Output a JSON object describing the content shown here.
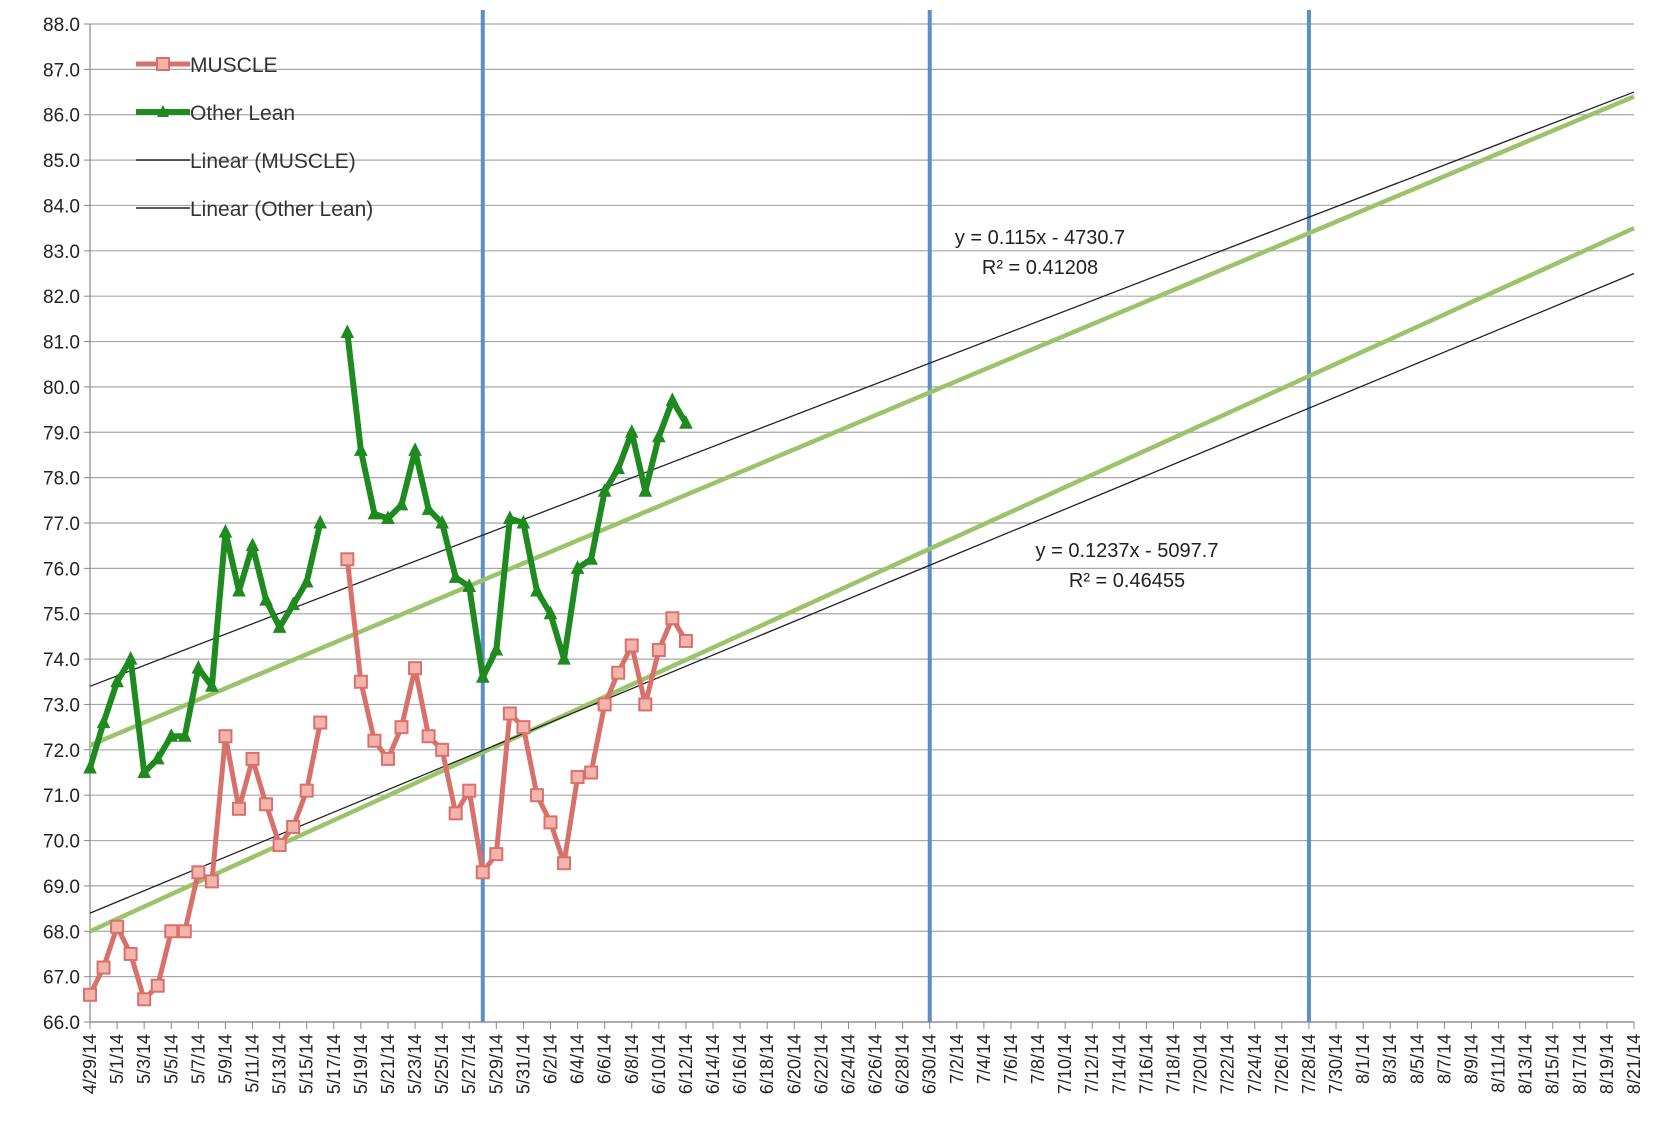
{
  "chart_data": {
    "type": "line",
    "title": "",
    "xlabel": "",
    "ylabel": "",
    "ylim": [
      66.0,
      88.0
    ],
    "y_tick_step": 1.0,
    "x_start": "2014-04-29",
    "x_end": "2014-08-21",
    "x_tick_labels": [
      "4/29/14",
      "5/1/14",
      "5/3/14",
      "5/5/14",
      "5/7/14",
      "5/9/14",
      "5/11/14",
      "5/13/14",
      "5/15/14",
      "5/17/14",
      "5/19/14",
      "5/21/14",
      "5/23/14",
      "5/25/14",
      "5/27/14",
      "5/29/14",
      "5/31/14",
      "6/2/14",
      "6/4/14",
      "6/6/14",
      "6/8/14",
      "6/10/14",
      "6/12/14",
      "6/14/14",
      "6/16/14",
      "6/18/14",
      "6/20/14",
      "6/22/14",
      "6/24/14",
      "6/26/14",
      "6/28/14",
      "6/30/14",
      "7/2/14",
      "7/4/14",
      "7/6/14",
      "7/8/14",
      "7/10/14",
      "7/12/14",
      "7/14/14",
      "7/16/14",
      "7/18/14",
      "7/20/14",
      "7/22/14",
      "7/24/14",
      "7/26/14",
      "7/28/14",
      "7/30/14",
      "8/1/14",
      "8/3/14",
      "8/5/14",
      "8/7/14",
      "8/9/14",
      "8/11/14",
      "8/13/14",
      "8/15/14",
      "8/17/14",
      "8/19/14",
      "8/21/14"
    ],
    "grid": "horizontal",
    "legend_position": "top-left",
    "series": [
      {
        "name": "MUSCLE",
        "color": "#d9716b",
        "marker": "square",
        "x": [
          "2014-04-29",
          "2014-04-30",
          "2014-05-01",
          "2014-05-02",
          "2014-05-03",
          "2014-05-04",
          "2014-05-05",
          "2014-05-06",
          "2014-05-07",
          "2014-05-08",
          "2014-05-09",
          "2014-05-10",
          "2014-05-11",
          "2014-05-12",
          "2014-05-13",
          "2014-05-14",
          "2014-05-15",
          "2014-05-16",
          null,
          "2014-05-18",
          "2014-05-19",
          "2014-05-20",
          "2014-05-21",
          "2014-05-22",
          "2014-05-23",
          "2014-05-24",
          "2014-05-25",
          "2014-05-26",
          "2014-05-27",
          "2014-05-28",
          "2014-05-29",
          "2014-05-30",
          "2014-05-31",
          "2014-06-01",
          "2014-06-02",
          "2014-06-03",
          "2014-06-04",
          "2014-06-05",
          "2014-06-06",
          "2014-06-07",
          "2014-06-08",
          "2014-06-09",
          "2014-06-10",
          "2014-06-11",
          "2014-06-12",
          "2014-06-13"
        ],
        "y": [
          66.6,
          67.2,
          68.1,
          67.5,
          66.5,
          66.8,
          68.0,
          68.0,
          69.3,
          69.1,
          72.3,
          70.7,
          71.8,
          70.8,
          69.9,
          70.3,
          71.1,
          72.6,
          null,
          76.2,
          73.5,
          72.2,
          71.8,
          72.5,
          73.8,
          72.3,
          72.0,
          70.6,
          71.1,
          69.3,
          69.7,
          72.8,
          72.5,
          71.0,
          70.4,
          69.5,
          71.4,
          71.5,
          73.0,
          73.7,
          74.3,
          73.0,
          74.2,
          74.9,
          74.4,
          null
        ]
      },
      {
        "name": "Other Lean",
        "color": "#1f8a1f",
        "marker": "triangle",
        "x": [
          "2014-04-29",
          "2014-04-30",
          "2014-05-01",
          "2014-05-02",
          "2014-05-03",
          "2014-05-04",
          "2014-05-05",
          "2014-05-06",
          "2014-05-07",
          "2014-05-08",
          "2014-05-09",
          "2014-05-10",
          "2014-05-11",
          "2014-05-12",
          "2014-05-13",
          "2014-05-14",
          "2014-05-15",
          "2014-05-16",
          null,
          "2014-05-18",
          "2014-05-19",
          "2014-05-20",
          "2014-05-21",
          "2014-05-22",
          "2014-05-23",
          "2014-05-24",
          "2014-05-25",
          "2014-05-26",
          "2014-05-27",
          "2014-05-28",
          "2014-05-29",
          "2014-05-30",
          "2014-05-31",
          "2014-06-01",
          "2014-06-02",
          "2014-06-03",
          "2014-06-04",
          "2014-06-05",
          "2014-06-06",
          "2014-06-07",
          "2014-06-08",
          "2014-06-09",
          "2014-06-10",
          "2014-06-11",
          "2014-06-12",
          "2014-06-13"
        ],
        "y": [
          71.6,
          72.6,
          73.5,
          74.0,
          71.5,
          71.8,
          72.3,
          72.3,
          73.8,
          73.4,
          76.8,
          75.5,
          76.5,
          75.3,
          74.7,
          75.2,
          75.7,
          77.0,
          null,
          81.2,
          78.6,
          77.2,
          77.1,
          77.4,
          78.6,
          77.3,
          77.0,
          75.8,
          75.6,
          73.6,
          74.2,
          77.1,
          77.0,
          75.5,
          75.0,
          74.0,
          76.0,
          76.2,
          77.7,
          78.2,
          79.0,
          77.7,
          78.9,
          79.7,
          79.2,
          null
        ]
      }
    ],
    "trendlines": [
      {
        "name": "Linear (MUSCLE)",
        "color": "#222222",
        "x": [
          "2014-04-29",
          "2014-08-21"
        ],
        "y": [
          68.4,
          82.5
        ],
        "equation": "y = 0.1237x - 5097.7",
        "r2": "R² = 0.46455"
      },
      {
        "name": "Linear (Other Lean)",
        "color": "#222222",
        "x": [
          "2014-04-29",
          "2014-08-21"
        ],
        "y": [
          73.4,
          86.5
        ],
        "equation": "y = 0.115x - 4730.7",
        "r2": "R² = 0.41208"
      }
    ],
    "projection_lines": [
      {
        "color": "#9bc36a",
        "x": [
          "2014-04-29",
          "2014-08-21"
        ],
        "y": [
          72.1,
          86.4
        ]
      },
      {
        "color": "#9bc36a",
        "x": [
          "2014-04-29",
          "2014-08-21"
        ],
        "y": [
          68.0,
          83.5
        ]
      }
    ],
    "vertical_markers": [
      {
        "x": "2014-05-28",
        "color": "#5b8fc7"
      },
      {
        "x": "2014-06-30",
        "color": "#5b8fc7"
      },
      {
        "x": "2014-07-28",
        "color": "#5b8fc7"
      }
    ]
  },
  "legend": {
    "items": [
      {
        "label": "MUSCLE",
        "color": "#d9716b",
        "marker": "square"
      },
      {
        "label": "Other Lean",
        "color": "#1f8a1f",
        "marker": "triangle"
      },
      {
        "label": "Linear (MUSCLE)",
        "color": "#222222",
        "marker": "none"
      },
      {
        "label": "Linear (Other Lean)",
        "color": "#222222",
        "marker": "none"
      }
    ]
  }
}
